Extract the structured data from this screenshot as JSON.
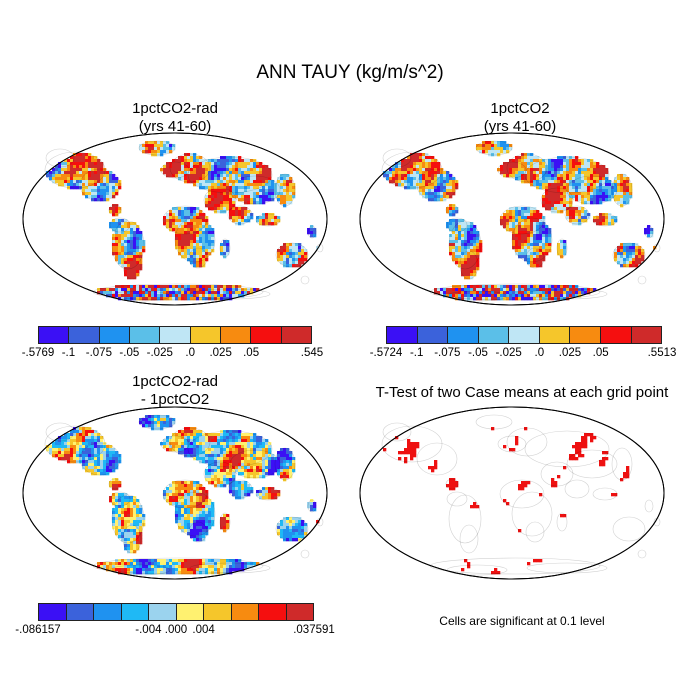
{
  "title": "ANN TAUY (kg/m/s^2)",
  "panels": [
    {
      "title_line1": "1pctCO2-rad",
      "title_line2": "(yrs 41-60)",
      "colorbar": {
        "colors": [
          "#3b10f5",
          "#3b62db",
          "#1f92f0",
          "#5bbfe8",
          "#bfe6f5",
          "#f5c62b",
          "#f78b10",
          "#f50f0f",
          "#cf2a2a"
        ],
        "labels": [
          "-.5769",
          "-.1",
          "-.075",
          "-.05",
          "-.025",
          ".0",
          ".025",
          ".05",
          ".545"
        ]
      }
    },
    {
      "title_line1": "1pctCO2",
      "title_line2": "(yrs 41-60)",
      "colorbar": {
        "colors": [
          "#3b10f5",
          "#3b62db",
          "#1f92f0",
          "#5bbfe8",
          "#bfe6f5",
          "#f5c62b",
          "#f78b10",
          "#f50f0f",
          "#cf2a2a"
        ],
        "labels": [
          "-.5724",
          "-.1",
          "-.075",
          "-.05",
          "-.025",
          ".0",
          ".025",
          ".05",
          ".5513"
        ]
      }
    },
    {
      "title_line1": "1pctCO2-rad",
      "title_line2": "- 1pctCO2",
      "colorbar": {
        "colors": [
          "#3b10f5",
          "#3b62db",
          "#1f92f0",
          "#1fb9f5",
          "#9bd3ee",
          "#fff170",
          "#f5c62b",
          "#f78b10",
          "#f50f0f",
          "#cf2a2a"
        ],
        "labels": [
          "-.086157",
          "-.004",
          ".000",
          ".004",
          ".037591"
        ]
      }
    },
    {
      "title_line1": "T-Test of two Case means at each grid point",
      "note": "Cells are significant at 0.1 level",
      "colors": {
        "significant": "#ee1111"
      }
    }
  ]
}
